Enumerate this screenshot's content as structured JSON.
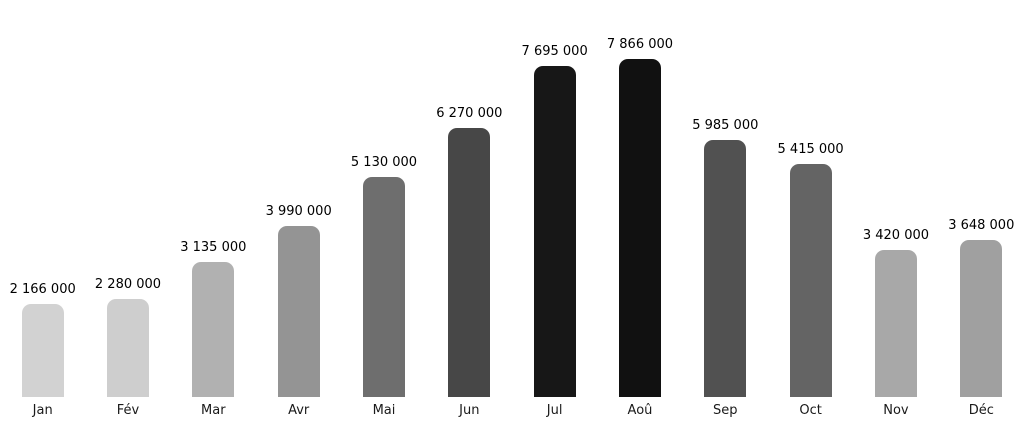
{
  "chart_data": {
    "type": "bar",
    "title": "",
    "xlabel": "",
    "ylabel": "",
    "categories": [
      "Jan",
      "Fév",
      "Mar",
      "Avr",
      "Mai",
      "Jun",
      "Jul",
      "Aoû",
      "Sep",
      "Oct",
      "Nov",
      "Déc"
    ],
    "values": [
      2166000,
      2280000,
      3135000,
      3990000,
      5130000,
      6270000,
      7695000,
      7866000,
      5985000,
      5415000,
      3420000,
      3648000
    ],
    "value_labels": [
      "2 166 000",
      "2 280 000",
      "3 135 000",
      "3 990 000",
      "5 130 000",
      "6 270 000",
      "7 695 000",
      "7 866 000",
      "5 985 000",
      "5 415 000",
      "3 420 000",
      "3 648 000"
    ],
    "bar_colors": [
      "#d2d2d2",
      "#cecece",
      "#b1b1b1",
      "#949494",
      "#6e6e6e",
      "#474747",
      "#171717",
      "#111111",
      "#515151",
      "#646464",
      "#a8a8a8",
      "#a0a0a0"
    ],
    "ylim": [
      0,
      7866000
    ],
    "grid": false,
    "legend": false,
    "axes_visible": false,
    "background_color": "#ffffff",
    "label_color": "#000000",
    "tick_label_color": "#1a1a1a"
  }
}
